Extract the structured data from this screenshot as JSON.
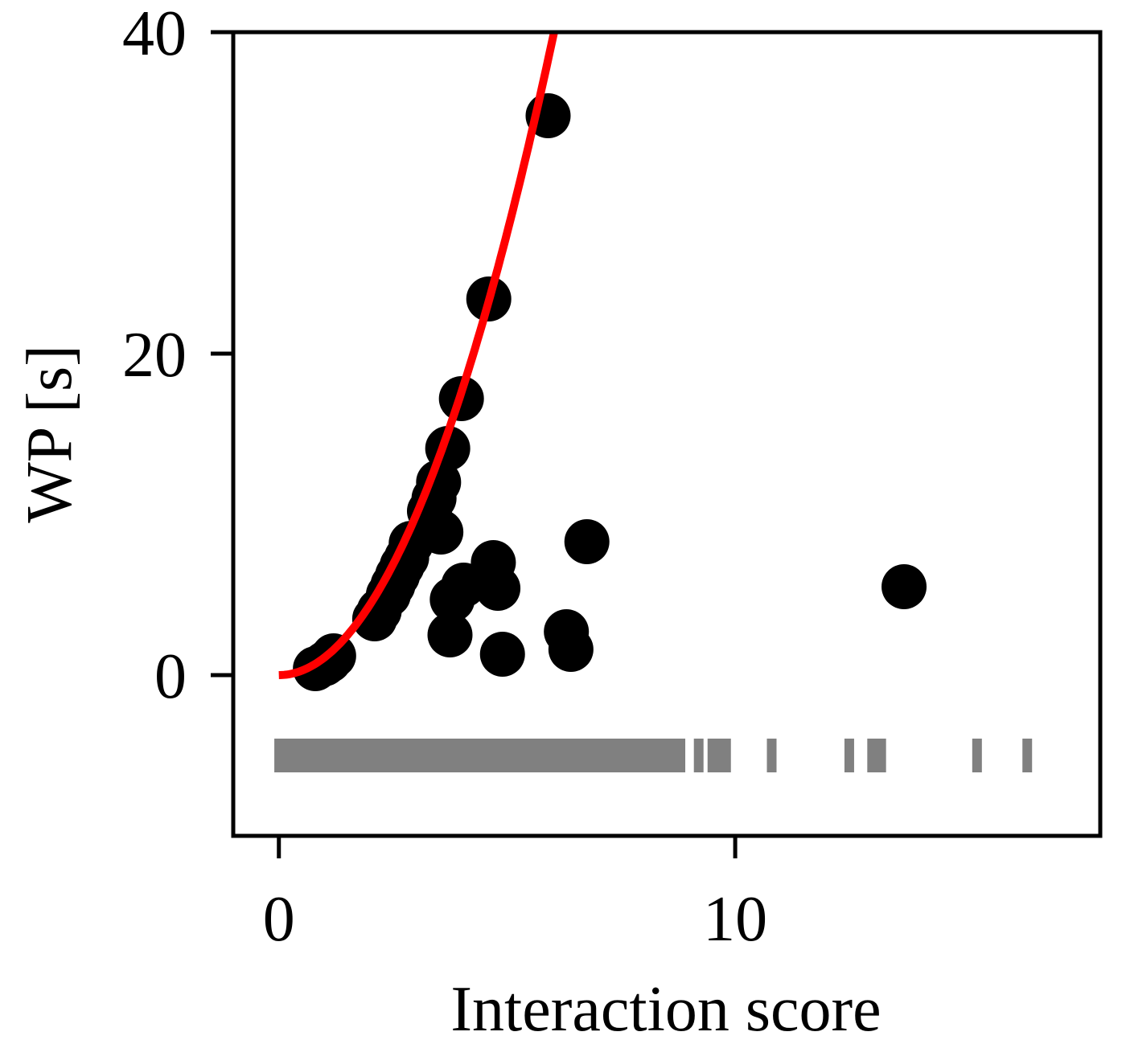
{
  "chart_data": {
    "type": "scatter",
    "xlabel": "Interaction score",
    "ylabel": "WP [s]",
    "xlim": [
      -1,
      18
    ],
    "ylim": [
      -10,
      40
    ],
    "x_ticks": [
      0,
      10
    ],
    "x_tick_labels": [
      "0",
      "10"
    ],
    "y_ticks": [
      0,
      20,
      40
    ],
    "y_tick_labels": [
      "0",
      "20",
      "40"
    ],
    "grid": false,
    "legend": "none",
    "colors": {
      "points": "#000000",
      "fit_line": "#ff0000",
      "rug": "#808080"
    },
    "points": [
      {
        "x": 0.8,
        "y": 0.4
      },
      {
        "x": 1.0,
        "y": 0.7
      },
      {
        "x": 1.1,
        "y": 0.9
      },
      {
        "x": 1.2,
        "y": 1.2
      },
      {
        "x": 2.1,
        "y": 3.5
      },
      {
        "x": 2.2,
        "y": 4.0
      },
      {
        "x": 2.4,
        "y": 5.0
      },
      {
        "x": 2.5,
        "y": 5.6
      },
      {
        "x": 2.6,
        "y": 6.2
      },
      {
        "x": 2.7,
        "y": 6.8
      },
      {
        "x": 2.8,
        "y": 7.3
      },
      {
        "x": 2.9,
        "y": 8.2
      },
      {
        "x": 3.3,
        "y": 10.2
      },
      {
        "x": 3.4,
        "y": 11.0
      },
      {
        "x": 3.5,
        "y": 12.0
      },
      {
        "x": 3.55,
        "y": 8.9
      },
      {
        "x": 3.7,
        "y": 14.1
      },
      {
        "x": 4.0,
        "y": 17.2
      },
      {
        "x": 4.6,
        "y": 23.4
      },
      {
        "x": 5.9,
        "y": 34.8
      },
      {
        "x": 3.8,
        "y": 4.7
      },
      {
        "x": 4.05,
        "y": 5.6
      },
      {
        "x": 4.7,
        "y": 7.0
      },
      {
        "x": 4.8,
        "y": 5.4
      },
      {
        "x": 3.75,
        "y": 2.5
      },
      {
        "x": 4.9,
        "y": 1.3
      },
      {
        "x": 6.3,
        "y": 2.7
      },
      {
        "x": 6.4,
        "y": 1.6
      },
      {
        "x": 6.75,
        "y": 8.3
      },
      {
        "x": 13.7,
        "y": 5.5
      }
    ],
    "fit_curve": {
      "form": "y = a*x^2",
      "a": 1.1,
      "x_range": [
        0,
        6.7
      ]
    },
    "rug_band": {
      "x_range": [
        -0.1,
        8.3
      ],
      "y": -5
    },
    "rug_ticks_x": [
      8.4,
      8.5,
      8.6,
      8.7,
      8.8,
      9.2,
      9.5,
      9.6,
      9.8,
      10.8,
      12.5,
      13.0,
      13.1,
      13.2,
      15.3,
      16.4
    ]
  }
}
